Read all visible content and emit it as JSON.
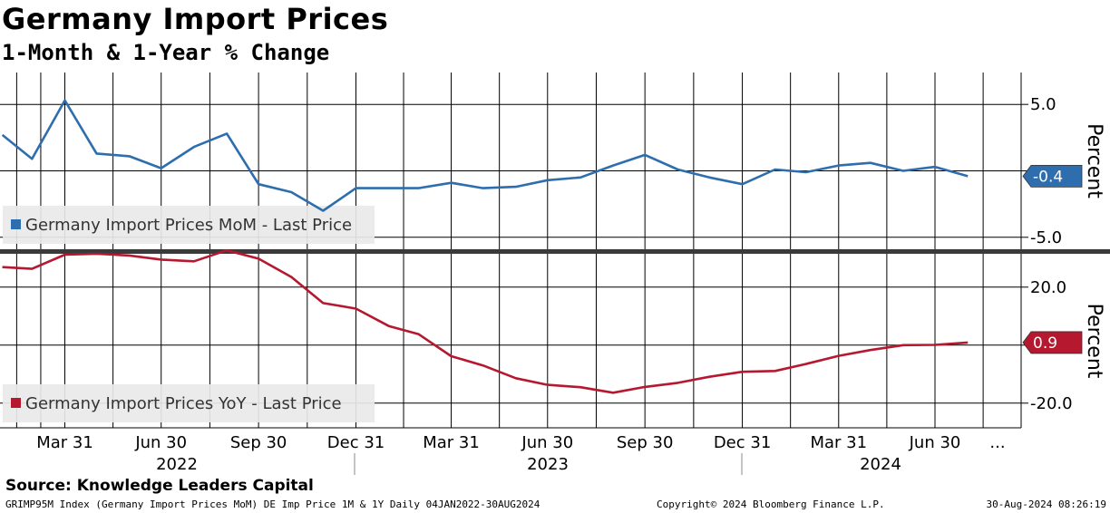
{
  "header": {
    "title": "Germany Import Prices",
    "subtitle": "1-Month & 1-Year % Change"
  },
  "source": "Source: Knowledge Leaders Capital",
  "footer": {
    "left": "GRIMP95M Index (Germany Import Prices MoM) DE Imp Price 1M & 1Y  Daily 04JAN2022-30AUG2024",
    "center": "Copyright© 2024 Bloomberg Finance L.P.",
    "right": "30-Aug-2024 08:26:19"
  },
  "colors": {
    "mom": "#2e6eae",
    "yoy": "#b5182f"
  },
  "chart_data": [
    {
      "type": "line",
      "title": "Germany Import Prices MoM",
      "legend": "Germany Import Prices MoM - Last Price",
      "ylabel": "Percent",
      "ylim": [
        -5.9,
        7.4
      ],
      "yticks": [
        5.0,
        -5.0
      ],
      "ytick_labels": [
        "5.0",
        "-5.0"
      ],
      "last_value_label": "-0.4",
      "series": [
        {
          "name": "Germany Import Prices MoM",
          "x": [
            "2022-01-31",
            "2022-02-28",
            "2022-03-31",
            "2022-04-30",
            "2022-05-31",
            "2022-06-30",
            "2022-07-31",
            "2022-08-31",
            "2022-09-30",
            "2022-10-31",
            "2022-11-30",
            "2022-12-31",
            "2023-01-31",
            "2023-02-28",
            "2023-03-31",
            "2023-04-30",
            "2023-05-31",
            "2023-06-30",
            "2023-07-31",
            "2023-08-31",
            "2023-09-30",
            "2023-10-31",
            "2023-11-30",
            "2023-12-31",
            "2024-01-31",
            "2024-02-29",
            "2024-03-31",
            "2024-04-30",
            "2024-05-31",
            "2024-06-30",
            "2024-07-31"
          ],
          "values": [
            2.7,
            0.9,
            5.3,
            1.3,
            1.1,
            0.2,
            1.8,
            2.8,
            -1.0,
            -1.6,
            -3.0,
            -1.3,
            -1.3,
            -1.3,
            -0.9,
            -1.3,
            -1.2,
            -0.7,
            -0.5,
            0.4,
            1.2,
            0.1,
            -0.5,
            -1.0,
            0.1,
            -0.1,
            0.4,
            0.6,
            0.0,
            0.3,
            -0.4
          ]
        }
      ]
    },
    {
      "type": "line",
      "title": "Germany Import Prices YoY",
      "legend": "Germany Import Prices YoY - Last Price",
      "ylabel": "Percent",
      "ylim": [
        -28.5,
        31.5
      ],
      "yticks": [
        20.0,
        -20.0
      ],
      "ytick_labels": [
        "20.0",
        "-20.0"
      ],
      "last_value_label": "0.9",
      "series": [
        {
          "name": "Germany Import Prices YoY",
          "x": [
            "2022-01-31",
            "2022-02-28",
            "2022-03-31",
            "2022-04-30",
            "2022-05-31",
            "2022-06-30",
            "2022-07-31",
            "2022-08-31",
            "2022-09-30",
            "2022-10-31",
            "2022-11-30",
            "2022-12-31",
            "2023-01-31",
            "2023-02-28",
            "2023-03-31",
            "2023-04-30",
            "2023-05-31",
            "2023-06-30",
            "2023-07-31",
            "2023-08-31",
            "2023-09-30",
            "2023-10-31",
            "2023-11-30",
            "2023-12-31",
            "2024-01-31",
            "2024-02-29",
            "2024-03-31",
            "2024-04-30",
            "2024-05-31",
            "2024-06-30",
            "2024-07-31"
          ],
          "values": [
            26.9,
            26.3,
            31.2,
            31.5,
            30.9,
            29.5,
            28.9,
            32.7,
            29.8,
            23.5,
            14.5,
            12.6,
            6.6,
            3.8,
            -3.8,
            -7.0,
            -11.4,
            -13.7,
            -14.5,
            -16.4,
            -14.4,
            -13.0,
            -10.9,
            -9.2,
            -8.9,
            -6.5,
            -3.7,
            -1.7,
            0.0,
            0.1,
            0.9
          ]
        }
      ]
    }
  ],
  "x_axis": {
    "ticks": [
      {
        "label": "Mar 31",
        "date": "2022-03-31"
      },
      {
        "label": "Jun 30",
        "date": "2022-06-30"
      },
      {
        "label": "Sep 30",
        "date": "2022-09-30"
      },
      {
        "label": "Dec 31",
        "date": "2022-12-31"
      },
      {
        "label": "Mar 31",
        "date": "2023-03-31"
      },
      {
        "label": "Jun 30",
        "date": "2023-06-30"
      },
      {
        "label": "Sep 30",
        "date": "2023-09-30"
      },
      {
        "label": "Dec 31",
        "date": "2023-12-31"
      },
      {
        "label": "Mar 31",
        "date": "2024-03-31"
      },
      {
        "label": "Jun 30",
        "date": "2024-06-30"
      }
    ],
    "more": "...",
    "years": [
      "2022",
      "2023",
      "2024"
    ]
  }
}
